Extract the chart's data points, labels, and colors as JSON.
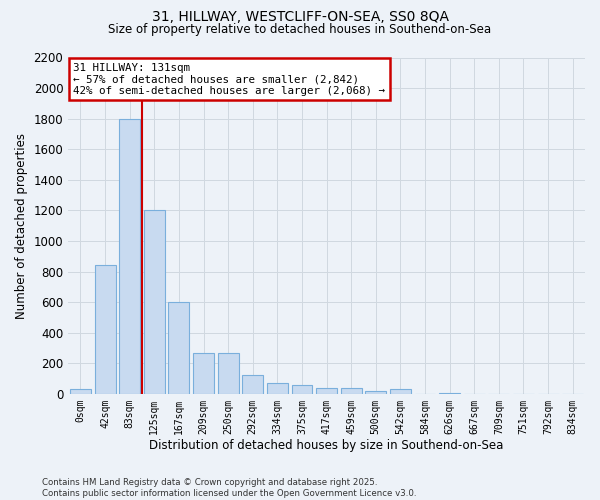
{
  "title_line1": "31, HILLWAY, WESTCLIFF-ON-SEA, SS0 8QA",
  "title_line2": "Size of property relative to detached houses in Southend-on-Sea",
  "xlabel": "Distribution of detached houses by size in Southend-on-Sea",
  "ylabel": "Number of detached properties",
  "footer_line1": "Contains HM Land Registry data © Crown copyright and database right 2025.",
  "footer_line2": "Contains public sector information licensed under the Open Government Licence v3.0.",
  "bar_labels": [
    "0sqm",
    "42sqm",
    "83sqm",
    "125sqm",
    "167sqm",
    "209sqm",
    "250sqm",
    "292sqm",
    "334sqm",
    "375sqm",
    "417sqm",
    "459sqm",
    "500sqm",
    "542sqm",
    "584sqm",
    "626sqm",
    "667sqm",
    "709sqm",
    "751sqm",
    "792sqm",
    "834sqm"
  ],
  "bar_values": [
    30,
    840,
    1800,
    1200,
    600,
    270,
    270,
    120,
    70,
    55,
    40,
    40,
    20,
    30,
    0,
    5,
    0,
    0,
    0,
    0,
    0
  ],
  "bar_color": "#c8daf0",
  "bar_edge_color": "#7aafdc",
  "vline_x": 2.5,
  "vline_label": "31 HILLWAY: 131sqm",
  "vline_color": "#cc0000",
  "annotation_line1": "← 57% of detached houses are smaller (2,842)",
  "annotation_line2": "42% of semi-detached houses are larger (2,068) →",
  "annotation_box_color": "#cc0000",
  "ylim": [
    0,
    2200
  ],
  "yticks": [
    0,
    200,
    400,
    600,
    800,
    1000,
    1200,
    1400,
    1600,
    1800,
    2000,
    2200
  ],
  "grid_color": "#d0d8e0",
  "background_color": "#edf2f8"
}
